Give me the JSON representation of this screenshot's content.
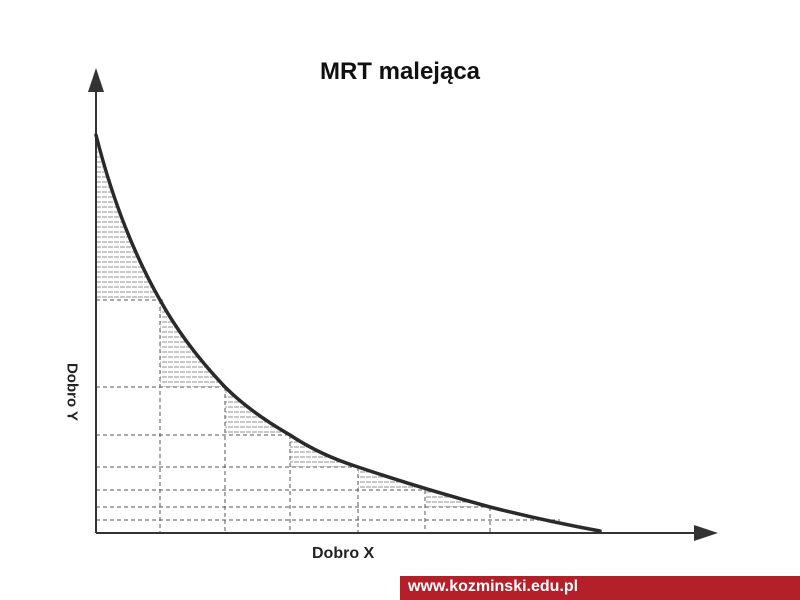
{
  "title": "MRT malejąca",
  "y_axis_label": "Dobro Y",
  "x_axis_label": "Dobro X",
  "footer": {
    "url": "www.kozminski.edu.pl",
    "background_color": "#b3202a"
  },
  "colors": {
    "curve": "#2a2a2a",
    "grid": "#555555",
    "hatch": "#666666"
  }
}
